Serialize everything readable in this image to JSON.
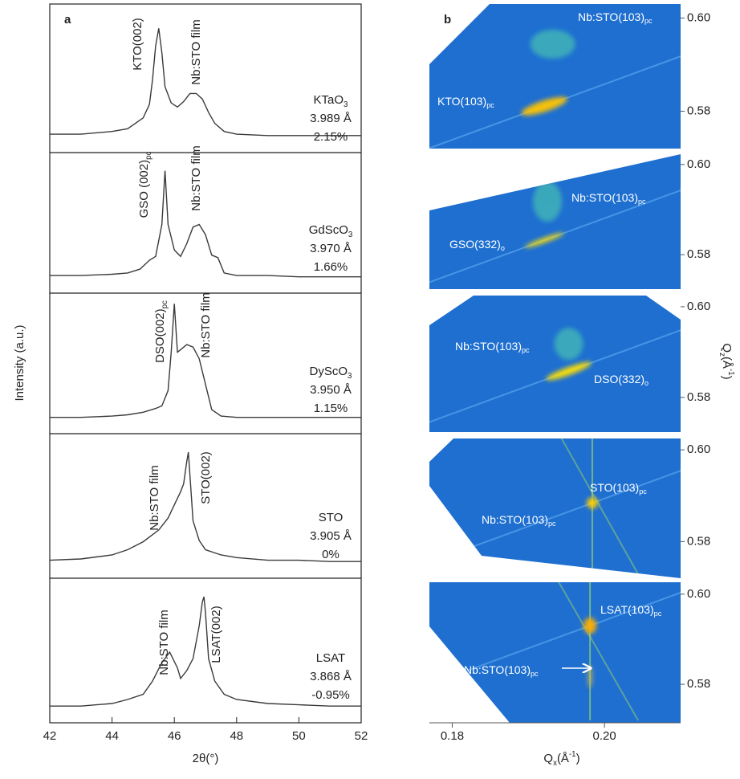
{
  "chart_data": [
    {
      "type": "line",
      "panel_label": "a",
      "ylabel": "Intensity (a.u.)",
      "xlabel": "2θ(°)",
      "color": "#3a3a3a",
      "xlim": [
        42,
        52
      ],
      "ylim": [
        0,
        100
      ],
      "xticks": [
        42,
        44,
        46,
        48,
        50,
        52
      ],
      "panels": [
        {
          "x": [
            42,
            43,
            44,
            44.5,
            45,
            45.2,
            45.3,
            45.4,
            45.5,
            45.6,
            45.7,
            45.9,
            46.1,
            46.3,
            46.5,
            46.7,
            46.9,
            47.1,
            47.3,
            47.6,
            48,
            49,
            50,
            51,
            52
          ],
          "values": [
            10,
            10,
            12,
            14,
            22,
            32,
            50,
            75,
            88,
            70,
            45,
            33,
            30,
            34,
            40,
            40,
            36,
            26,
            18,
            12,
            10,
            9,
            9,
            9,
            9
          ],
          "substrate": {
            "text": "KTaO",
            "sub": "3"
          },
          "lattice": "3.989 Å",
          "mismatch": "2.15%",
          "peak_labels": [
            {
              "text": "KTO(002)"
            },
            {
              "text": "Nb:STO film"
            }
          ]
        },
        {
          "x": [
            42,
            43,
            44,
            44.5,
            44.9,
            45.2,
            45.4,
            45.6,
            45.7,
            45.8,
            46,
            46.2,
            46.4,
            46.6,
            46.8,
            47,
            47.2,
            47.4,
            47.6,
            48,
            49,
            50,
            51,
            52
          ],
          "values": [
            10,
            10,
            11,
            12,
            15,
            22,
            25,
            50,
            92,
            50,
            30,
            25,
            35,
            48,
            50,
            42,
            26,
            24,
            12,
            10,
            10,
            9,
            9,
            9
          ],
          "substrate": {
            "text": "GdScO",
            "sub": "3"
          },
          "lattice": "3.970 Å",
          "mismatch": "1.66%",
          "peak_labels": [
            {
              "text": "GSO (002)",
              "sub": "pc"
            },
            {
              "text": "Nb:STO film"
            }
          ]
        },
        {
          "x": [
            42,
            43,
            44,
            44.5,
            45,
            45.4,
            45.6,
            45.8,
            45.9,
            46,
            46.1,
            46.2,
            46.4,
            46.6,
            46.8,
            47,
            47.2,
            47.5,
            48,
            49,
            50,
            51,
            52
          ],
          "values": [
            9,
            9,
            10,
            11,
            13,
            16,
            18,
            30,
            60,
            98,
            60,
            62,
            66,
            64,
            55,
            35,
            15,
            10,
            9,
            9,
            9,
            9,
            9
          ],
          "substrate": {
            "text": "DyScO",
            "sub": "3"
          },
          "lattice": "3.950 Å",
          "mismatch": "1.15%",
          "peak_labels": [
            {
              "text": "DSO(002)",
              "sub": "pc"
            },
            {
              "text": "Nb:STO film"
            }
          ]
        },
        {
          "x": [
            42,
            43,
            44,
            44.5,
            45,
            45.5,
            45.8,
            46,
            46.2,
            46.3,
            46.4,
            46.45,
            46.5,
            46.6,
            46.8,
            47,
            47.5,
            48,
            49,
            50,
            51,
            52
          ],
          "values": [
            10,
            11,
            14,
            18,
            24,
            33,
            42,
            52,
            62,
            68,
            85,
            92,
            75,
            40,
            25,
            18,
            14,
            12,
            10,
            10,
            9,
            9
          ],
          "substrate": {
            "text": "STO"
          },
          "lattice": "3.905 Å",
          "mismatch": "0%",
          "peak_labels": [
            {
              "text": "Nb:STO film"
            },
            {
              "text": "STO(002)"
            }
          ]
        },
        {
          "x": [
            42,
            43,
            44,
            44.5,
            45,
            45.3,
            45.6,
            45.85,
            46.1,
            46.2,
            46.4,
            46.6,
            46.8,
            46.9,
            46.95,
            47,
            47.1,
            47.3,
            47.6,
            48,
            49,
            50,
            51,
            52
          ],
          "values": [
            9,
            9,
            11,
            14,
            18,
            28,
            42,
            50,
            38,
            30,
            36,
            45,
            70,
            88,
            92,
            80,
            45,
            28,
            18,
            14,
            11,
            10,
            9,
            9
          ],
          "substrate": {
            "text": "LSAT"
          },
          "lattice": "3.868 Å",
          "mismatch": "-0.95%",
          "peak_labels": [
            {
              "text": "Nb:STO film"
            },
            {
              "text": "LSAT(002)"
            }
          ]
        }
      ]
    },
    {
      "type": "map",
      "panel_label": "b",
      "background": "#1e6fd0",
      "xlabel": {
        "text": "Q",
        "sub": "x",
        "unit": "(Å",
        "sup": "-1",
        "close": ")"
      },
      "ylabel": {
        "text": "Q",
        "sub": "z",
        "unit": "(Å",
        "sup": "-1",
        "close": ")"
      },
      "xlim": [
        0.177,
        0.21
      ],
      "ylim": [
        0.572,
        0.603
      ],
      "xticks": [
        0.18,
        {
          "value": 0.2,
          "label": "0.20"
        }
      ],
      "yticks": [
        {
          "value": 0.6,
          "label": "0.60"
        },
        0.58
      ],
      "panels": [
        {
          "spots": [
            {
              "qx": 0.1921,
              "qz": 0.5811,
              "color": "#ffc400"
            },
            {
              "qx": 0.1932,
              "qz": 0.5944,
              "color": "#4cc7b0"
            }
          ],
          "labels": [
            {
              "text": "KTO(103)",
              "sub": "pc"
            },
            {
              "text": "Nb:STO(103)",
              "sub": "pc"
            }
          ]
        },
        {
          "spots": [
            {
              "qx": 0.1921,
              "qz": 0.5832,
              "color": "#ffe000"
            },
            {
              "qx": 0.1925,
              "qz": 0.5918,
              "color": "#4cc7b0"
            }
          ],
          "labels": [
            {
              "text": "GSO(332)",
              "sub": "o"
            },
            {
              "text": "Nb:STO(103)",
              "sub": "pc"
            }
          ]
        },
        {
          "spots": [
            {
              "qx": 0.1953,
              "qz": 0.5858,
              "color": "#ffe000"
            },
            {
              "qx": 0.1953,
              "qz": 0.5918,
              "color": "#4cc7b0"
            }
          ],
          "labels": [
            {
              "text": "Nb:STO(103)",
              "sub": "pc"
            },
            {
              "text": "DSO(332)",
              "sub": "o"
            }
          ]
        },
        {
          "spots": [
            {
              "qx": 0.1984,
              "qz": 0.5884,
              "color": "#ffcf00"
            }
          ],
          "labels": [
            {
              "text": "STO(103)",
              "sub": "pc"
            },
            {
              "text": "Nb:STO(103)",
              "sub": "pc"
            }
          ]
        },
        {
          "spots": [
            {
              "qx": 0.1981,
              "qz": 0.593,
              "color": "#ffb000"
            },
            {
              "qx": 0.1981,
              "qz": 0.5817,
              "color": "#e0c040"
            }
          ],
          "labels": [
            {
              "text": "LSAT(103)",
              "sub": "pc"
            },
            {
              "text": "Nb:STO(103)",
              "sub": "pc"
            }
          ]
        }
      ]
    }
  ]
}
